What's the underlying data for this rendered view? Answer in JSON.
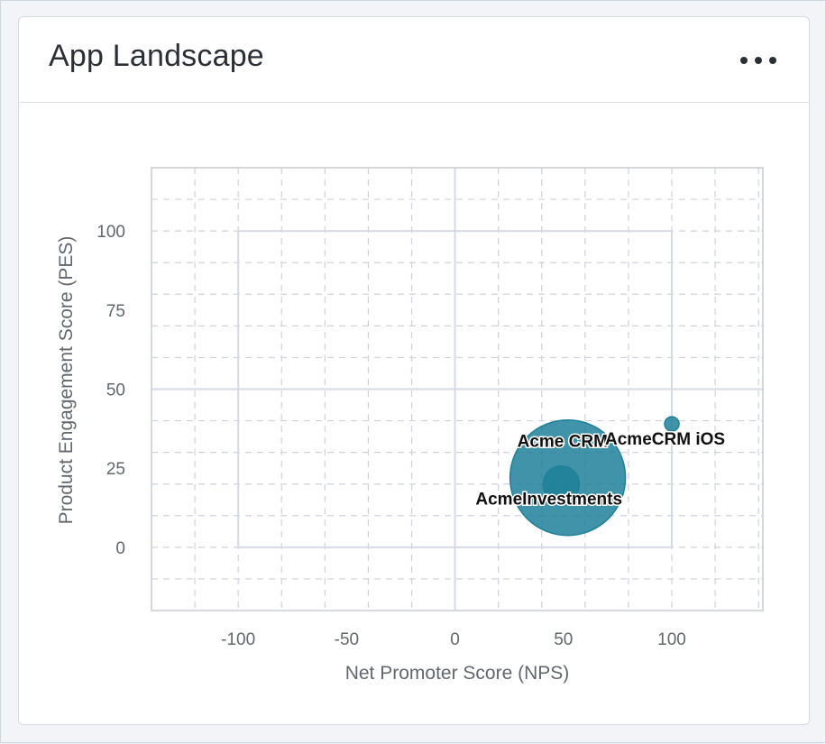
{
  "card": {
    "title": "App Landscape",
    "menu_icon": "more-horizontal-icon"
  },
  "colors": {
    "bubble": "#1f8099",
    "grid": "#cfd2da",
    "quadrant": "#d6d9e6"
  },
  "chart_data": {
    "type": "scatter",
    "title": "",
    "xlabel": "Net Promoter Score (NPS)",
    "ylabel": "Product Engagement Score (PES)",
    "xlim": [
      -140,
      142
    ],
    "ylim": [
      -20,
      120
    ],
    "xticks": [
      -100,
      -50,
      0,
      50,
      100
    ],
    "yticks": [
      0,
      25,
      50,
      75,
      100
    ],
    "grid": true,
    "quadrant_box": {
      "x": [
        -100,
        100
      ],
      "y": [
        0,
        100
      ],
      "divider_x": 0,
      "divider_y": 50
    },
    "points": [
      {
        "name": "Acme CRM",
        "label": "Acme CRM",
        "x": 52,
        "y": 22,
        "size": "large"
      },
      {
        "name": "AcmeInvestments",
        "label": "AcmeInvestments",
        "x": 49,
        "y": 20,
        "size": "small"
      },
      {
        "name": "AcmeCRM iOS",
        "label": "AcmeCRM iOS",
        "x": 100,
        "y": 39,
        "size": "tiny"
      }
    ]
  }
}
